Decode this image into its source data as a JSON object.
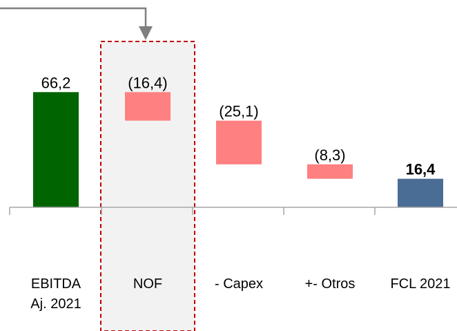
{
  "chart_data": {
    "type": "bar",
    "subtype": "waterfall",
    "categories": [
      "EBITDA\nAj. 2021",
      "NOF",
      "- Capex",
      "+- Otros",
      "FCL 2021"
    ],
    "values": [
      66.2,
      -16.4,
      -25.1,
      -8.3,
      16.4
    ],
    "value_labels": [
      "66,2",
      "(16,4)",
      "(25,1)",
      "(8,3)",
      "16,4"
    ],
    "bar_roles": [
      "total",
      "decrease",
      "decrease",
      "decrease",
      "total"
    ],
    "bold_labels": [
      false,
      false,
      false,
      false,
      true
    ],
    "highlighted_category": "NOF",
    "ylim": [
      0,
      70
    ],
    "title": "",
    "xlabel": "",
    "ylabel": "",
    "grid": false,
    "legend": "none",
    "colors": {
      "start_total": "#006400",
      "decrease": "#FF8080",
      "end_total": "#4A6D96",
      "highlight_box_fill": "#F2F2F2",
      "highlight_box_border": "#C00000",
      "axis": "#A6A6A6",
      "connector_arrow": "#7F7F7F"
    }
  }
}
